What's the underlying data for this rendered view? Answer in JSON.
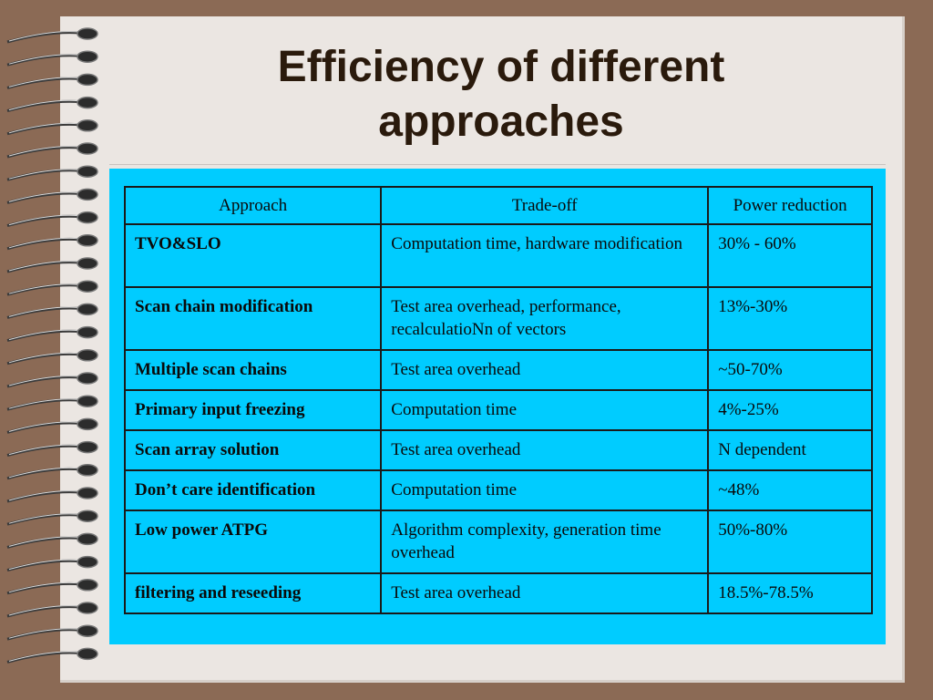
{
  "slide": {
    "title_line1": "Efficiency of different",
    "title_line2": "approaches"
  },
  "table": {
    "headers": [
      "Approach",
      "Trade-off",
      "Power reduction"
    ],
    "rows": [
      {
        "approach": "TVO&SLO",
        "tradeoff": "Computation time, hardware modification",
        "power": "30% - 60%"
      },
      {
        "approach": "Scan chain modification",
        "tradeoff": "Test area overhead, performance, recalculatioNn of vectors",
        "power": "13%-30%"
      },
      {
        "approach": "Multiple scan chains",
        "tradeoff": "Test area overhead",
        "power": "~50-70%"
      },
      {
        "approach": "Primary input freezing",
        "tradeoff": "Computation time",
        "power": "4%-25%"
      },
      {
        "approach": "Scan array solution",
        "tradeoff": "Test area overhead",
        "power": "N dependent"
      },
      {
        "approach": "Don’t care identification",
        "tradeoff": "Computation time",
        "power": "~48%"
      },
      {
        "approach": "Low power ATPG",
        "tradeoff": "Algorithm complexity, generation time overhead",
        "power": "50%-80%"
      },
      {
        "approach": "filtering and reseeding",
        "tradeoff": "Test area overhead",
        "power": "18.5%-78.5%"
      }
    ]
  },
  "colors": {
    "background": "#8b6a55",
    "page": "#ebe6e2",
    "panel": "#00ccff",
    "title": "#2a1a0c"
  }
}
